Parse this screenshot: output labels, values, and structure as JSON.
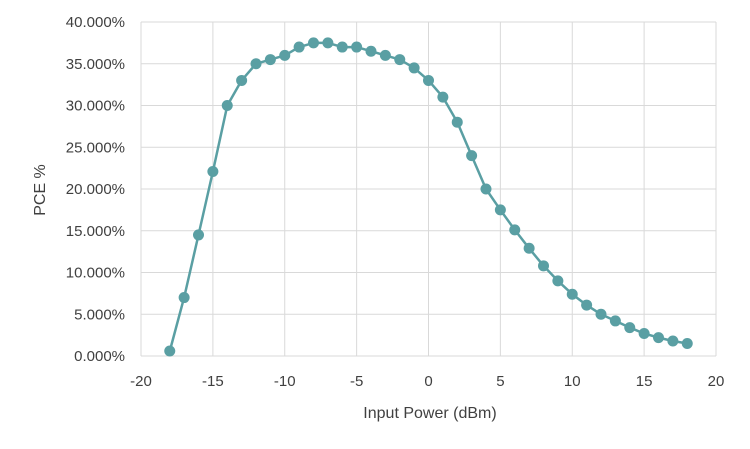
{
  "chart_data": {
    "type": "line",
    "title": "",
    "xlabel": "Input Power (dBm)",
    "ylabel": "PCE %",
    "xlim": [
      -20,
      20
    ],
    "ylim": [
      0,
      40
    ],
    "x_ticks": [
      -20,
      -15,
      -10,
      -5,
      0,
      5,
      10,
      15,
      20
    ],
    "x_tick_labels": [
      "-20",
      "-15",
      "-10",
      "-5",
      "0",
      "5",
      "10",
      "15",
      "20"
    ],
    "y_ticks": [
      0,
      5,
      10,
      15,
      20,
      25,
      30,
      35,
      40
    ],
    "y_tick_labels": [
      "0.000%",
      "5.000%",
      "10.000%",
      "15.000%",
      "20.000%",
      "25.000%",
      "30.000%",
      "35.000%",
      "40.000%"
    ],
    "grid": true,
    "legend": "none",
    "series": [
      {
        "color": "#5a9fa3",
        "marker": "circle",
        "x": [
          -18,
          -17,
          -16,
          -15,
          -14,
          -13,
          -12,
          -11,
          -10,
          -9,
          -8,
          -7,
          -6,
          -5,
          -4,
          -3,
          -2,
          -1,
          0,
          1,
          2,
          3,
          4,
          5,
          6,
          7,
          8,
          9,
          10,
          11,
          12,
          13,
          14,
          15,
          16,
          17,
          18
        ],
        "y": [
          0.6,
          7.0,
          14.5,
          22.1,
          30.0,
          33.0,
          35.0,
          35.5,
          36.0,
          37.0,
          37.5,
          37.5,
          37.0,
          37.0,
          36.5,
          36.0,
          35.5,
          34.5,
          33.0,
          31.0,
          28.0,
          24.0,
          20.0,
          17.5,
          15.1,
          12.9,
          10.8,
          9.0,
          7.4,
          6.1,
          5.0,
          4.2,
          3.4,
          2.7,
          2.2,
          1.8,
          1.5
        ]
      }
    ]
  }
}
